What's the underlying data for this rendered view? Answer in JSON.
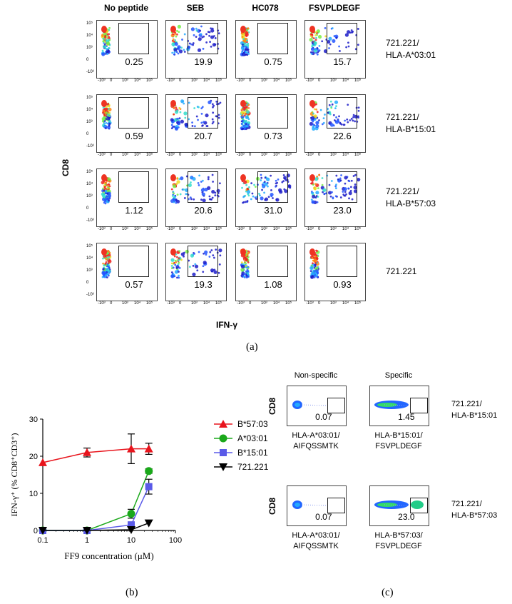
{
  "panel_a": {
    "columns": [
      "No peptide",
      "SEB",
      "HC078",
      "FSVPLDEGF"
    ],
    "rows": [
      {
        "label_1": "721.221/",
        "label_2": "HLA-A*03:01",
        "values": [
          "0.25",
          "19.9",
          "0.75",
          "15.7"
        ]
      },
      {
        "label_1": "721.221/",
        "label_2": "HLA-B*15:01",
        "values": [
          "0.59",
          "20.7",
          "0.73",
          "22.6"
        ]
      },
      {
        "label_1": "721.221/",
        "label_2": "HLA-B*57:03",
        "values": [
          "1.12",
          "20.6",
          "31.0",
          "23.0"
        ]
      },
      {
        "label_1": "721.221",
        "label_2": "",
        "values": [
          "0.57",
          "19.3",
          "1.08",
          "0.93"
        ]
      }
    ],
    "y_label": "CD8",
    "x_label": "IFN-γ",
    "caption": "(a)",
    "y_ticks": [
      "10⁵",
      "10⁴",
      "10³",
      "0",
      "-10³"
    ],
    "x_ticks": [
      "-10³",
      "0",
      "10³",
      "10⁴",
      "10⁵"
    ]
  },
  "chart_data": {
    "type": "line",
    "title": "",
    "xlabel": "FF9 concentration (μM)",
    "ylabel": "IFN-γ⁺ (% CD8⁺CD3⁺)",
    "x_scale": "log",
    "xlim": [
      0.1,
      100
    ],
    "ylim": [
      0,
      30
    ],
    "x_ticks": [
      "0.1",
      "1",
      "10",
      "100"
    ],
    "y_ticks": [
      "0",
      "10",
      "20",
      "30"
    ],
    "series": [
      {
        "name": "B*57:03",
        "color": "#e8141c",
        "marker": "triangle-up",
        "x": [
          0.1,
          1,
          10,
          25
        ],
        "y": [
          18.3,
          21.0,
          22.0,
          22.0
        ],
        "err": [
          0,
          1.2,
          4.0,
          1.5
        ]
      },
      {
        "name": "A*03:01",
        "color": "#1aa81a",
        "marker": "circle",
        "x": [
          0.1,
          1,
          10,
          25
        ],
        "y": [
          0,
          0,
          4.5,
          16.0
        ],
        "err": [
          0,
          0,
          1.2,
          0.6
        ]
      },
      {
        "name": "B*15:01",
        "color": "#5a5ae8",
        "marker": "square",
        "x": [
          0.1,
          1,
          10,
          25
        ],
        "y": [
          0,
          0,
          1.5,
          11.8
        ],
        "err": [
          0,
          0,
          0.8,
          2.0
        ]
      },
      {
        "name": "721.221",
        "color": "#000000",
        "marker": "triangle-down",
        "x": [
          0.1,
          1,
          10,
          25
        ],
        "y": [
          0,
          0,
          0.2,
          2.0
        ],
        "err": [
          0,
          0,
          0,
          0
        ]
      }
    ],
    "caption": "(b)"
  },
  "panel_c": {
    "headers": [
      "Non-specific",
      "Specific"
    ],
    "y_label": "CD8",
    "rows": [
      {
        "label_1": "721.221/",
        "label_2": "HLA-B*15:01",
        "values": [
          "0.07",
          "1.45"
        ],
        "x_labels": [
          [
            "HLA-A*03:01/",
            "AIFQSSMTK"
          ],
          [
            "HLA-B*15:01/",
            "FSVPLDEGF"
          ]
        ]
      },
      {
        "label_1": "721.221/",
        "label_2": "HLA-B*57:03",
        "values": [
          "0.07",
          "23.0"
        ],
        "x_labels": [
          [
            "HLA-A*03:01/",
            "AIFQSSMTK"
          ],
          [
            "HLA-B*57:03/",
            "FSVPLDEGF"
          ]
        ]
      }
    ],
    "caption": "(c)"
  }
}
